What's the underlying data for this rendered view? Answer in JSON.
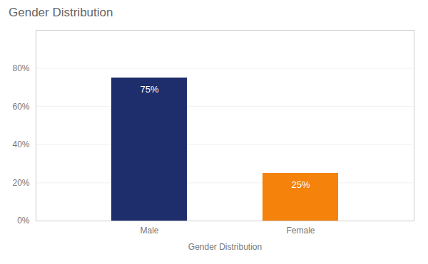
{
  "chart_data": {
    "type": "bar",
    "title": "Gender Distribution",
    "xlabel": "Gender Distribution",
    "categories": [
      "Male",
      "Female"
    ],
    "values": [
      75,
      25
    ],
    "value_labels": [
      "75%",
      "25%"
    ],
    "colors": [
      "#1e2d6b",
      "#f5820a"
    ],
    "data_labels": true,
    "ylim": [
      0,
      100
    ],
    "yticks": [
      {
        "value": 0,
        "label": "0%"
      },
      {
        "value": 20,
        "label": "20%"
      },
      {
        "value": 40,
        "label": "40%"
      },
      {
        "value": 60,
        "label": "60%"
      },
      {
        "value": 80,
        "label": "80%"
      }
    ],
    "grid": true
  }
}
